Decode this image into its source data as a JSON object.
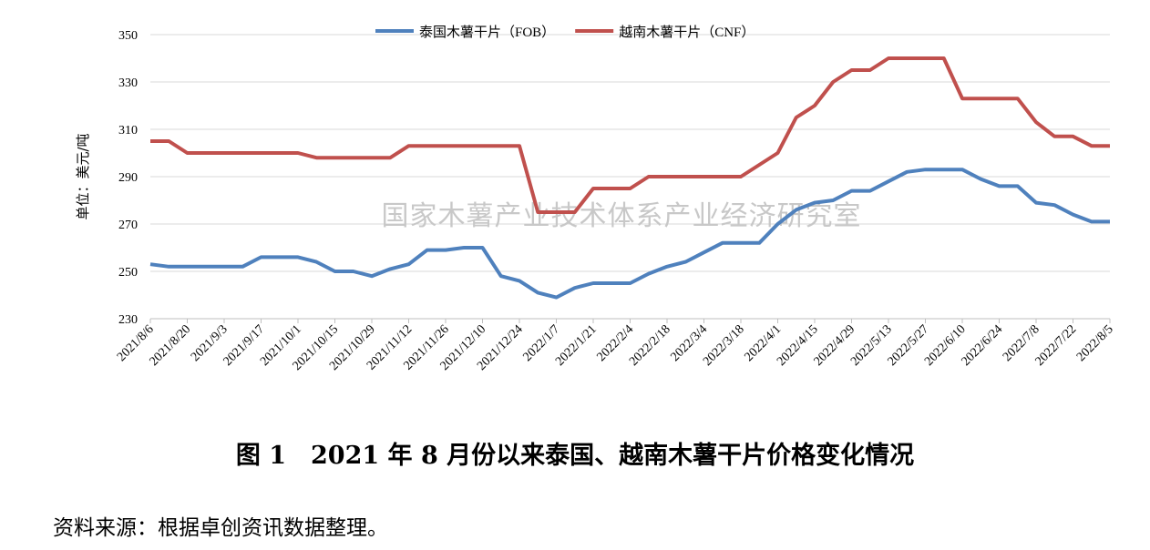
{
  "chart_data": {
    "type": "line",
    "categories": [
      "2021/8/6",
      null,
      "2021/8/20",
      null,
      "2021/9/3",
      null,
      "2021/9/17",
      null,
      "2021/10/1",
      null,
      "2021/10/15",
      null,
      "2021/10/29",
      null,
      "2021/11/12",
      null,
      "2021/11/26",
      null,
      "2021/12/10",
      null,
      "2021/12/24",
      null,
      "2022/1/7",
      null,
      "2022/1/21",
      null,
      "2022/2/4",
      null,
      "2022/2/18",
      null,
      "2022/3/4",
      null,
      "2022/3/18",
      null,
      "2022/4/1",
      null,
      "2022/4/15",
      null,
      "2022/4/29",
      null,
      "2022/5/13",
      null,
      "2022/5/27",
      null,
      "2022/6/10",
      null,
      "2022/6/24",
      null,
      "2022/7/8",
      null,
      "2022/7/22",
      null,
      "2022/8/5"
    ],
    "series": [
      {
        "name": "泰国木薯干片（FOB）",
        "color": "#4f81bd",
        "values": [
          253,
          252,
          252,
          252,
          252,
          252,
          256,
          256,
          256,
          254,
          250,
          250,
          248,
          251,
          253,
          259,
          259,
          260,
          260,
          248,
          246,
          241,
          239,
          243,
          245,
          245,
          245,
          249,
          252,
          254,
          258,
          262,
          262,
          262,
          270,
          276,
          279,
          280,
          284,
          284,
          288,
          292,
          293,
          293,
          293,
          289,
          286,
          286,
          279,
          278,
          274,
          271,
          271
        ]
      },
      {
        "name": "越南木薯干片（CNF）",
        "color": "#c0504d",
        "values": [
          305,
          305,
          300,
          300,
          300,
          300,
          300,
          300,
          300,
          298,
          298,
          298,
          298,
          298,
          303,
          303,
          303,
          303,
          303,
          303,
          303,
          275,
          275,
          275,
          285,
          285,
          285,
          290,
          290,
          290,
          290,
          290,
          290,
          295,
          300,
          315,
          320,
          330,
          335,
          335,
          340,
          340,
          340,
          340,
          323,
          323,
          323,
          323,
          313,
          307,
          307,
          303,
          303
        ]
      }
    ],
    "ylabel": "单位：美元/吨",
    "ylim": [
      230,
      350
    ],
    "yticks": [
      230,
      250,
      270,
      290,
      310,
      330,
      350
    ],
    "grid": true,
    "legend": "top",
    "watermark": "国家木薯产业技术体系产业经济研究室"
  },
  "caption": "图 1　2021 年 8 月份以来泰国、越南木薯干片价格变化情况",
  "source": "资料来源：根据卓创资讯数据整理。"
}
